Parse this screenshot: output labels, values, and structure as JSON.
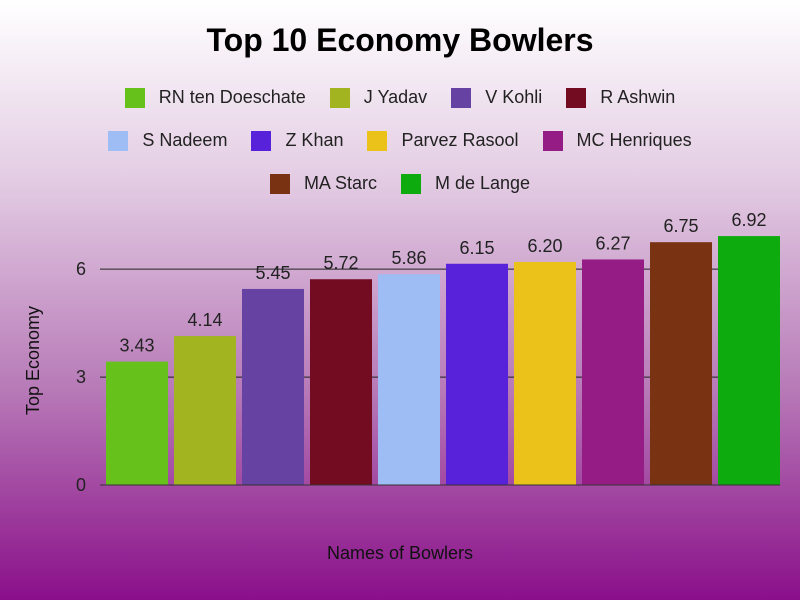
{
  "chart_data": {
    "type": "bar",
    "title": "Top 10 Economy Bowlers",
    "xlabel": "Names of Bowlers",
    "ylabel": "Top Economy",
    "ylim": [
      0,
      7.2
    ],
    "yticks": [
      0,
      3,
      6
    ],
    "grid": true,
    "legend_position": "top",
    "categories": [
      "RN ten Doeschate",
      "J Yadav",
      "V Kohli",
      "R Ashwin",
      "S Nadeem",
      "Z Khan",
      "Parvez Rasool",
      "MC Henriques",
      "MA Starc",
      "M de Lange"
    ],
    "values": [
      3.43,
      4.14,
      5.45,
      5.72,
      5.86,
      6.15,
      6.2,
      6.27,
      6.75,
      6.92
    ],
    "data_labels": [
      "3.43",
      "4.14",
      "5.45",
      "5.72",
      "5.86",
      "6.15",
      "6.20",
      "6.27",
      "6.75",
      "6.92"
    ],
    "colors": [
      "#66c21a",
      "#a2b520",
      "#6642a3",
      "#730c21",
      "#9ebdf5",
      "#5822db",
      "#ebc21a",
      "#961c85",
      "#7a3312",
      "#0dab0d"
    ]
  }
}
